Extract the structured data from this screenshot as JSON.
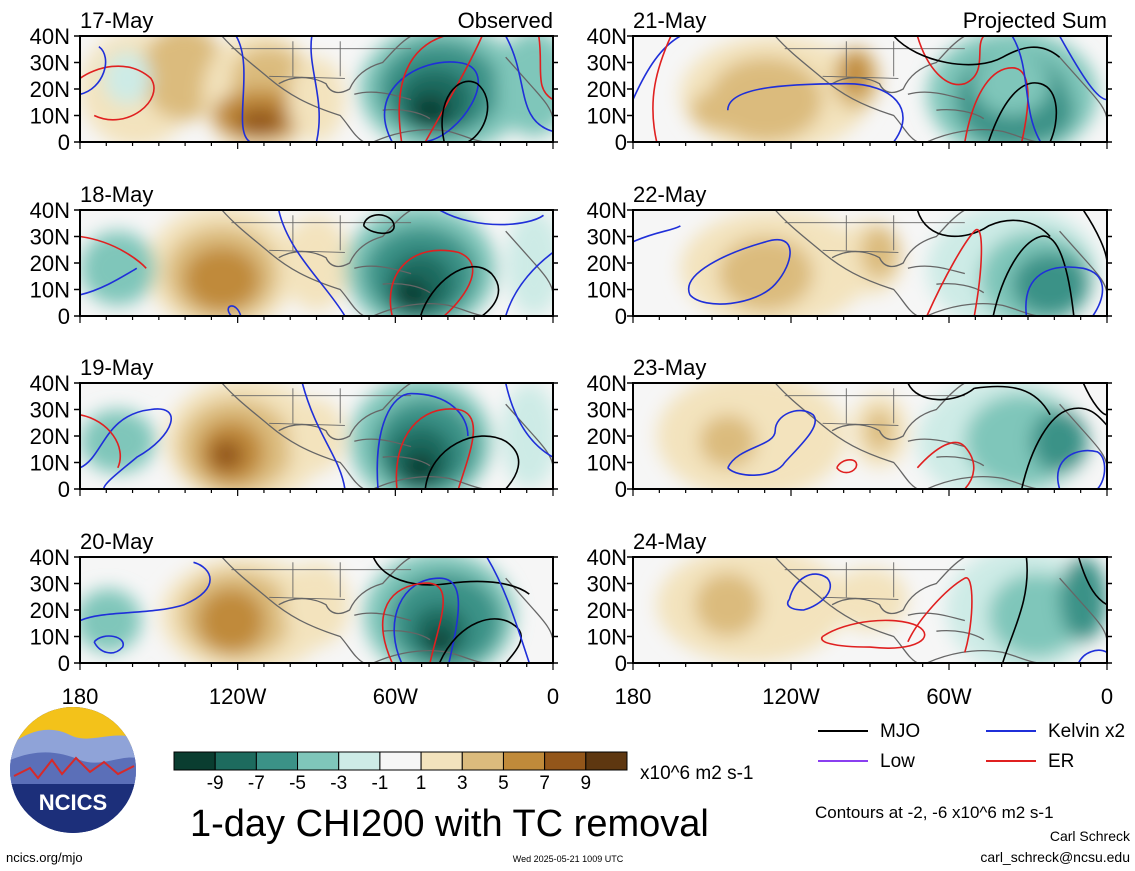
{
  "left_column": {
    "header": "Observed",
    "panels": [
      {
        "date": "17-May"
      },
      {
        "date": "18-May"
      },
      {
        "date": "19-May"
      },
      {
        "date": "20-May"
      }
    ]
  },
  "right_column": {
    "header": "Projected Sum",
    "panels": [
      {
        "date": "21-May"
      },
      {
        "date": "22-May"
      },
      {
        "date": "23-May"
      },
      {
        "date": "24-May"
      }
    ]
  },
  "axes": {
    "lat_labels": [
      "40N",
      "30N",
      "20N",
      "10N",
      "0"
    ],
    "lon_labels": [
      "180",
      "120W",
      "60W",
      "0"
    ]
  },
  "colorbar": {
    "tick_labels": [
      "-9",
      "-7",
      "-5",
      "-3",
      "-1",
      "1",
      "3",
      "5",
      "7",
      "9"
    ],
    "colors": [
      "#0a3d30",
      "#1d6b5e",
      "#3b9287",
      "#7fc6ba",
      "#cdebe6",
      "#f6f6f6",
      "#f3e3bd",
      "#dbbb7d",
      "#c08a3a",
      "#93561a",
      "#5e3710"
    ],
    "units": "x10^6 m2 s-1"
  },
  "title": "1-day CHI200 with TC removal",
  "legend": {
    "items": [
      {
        "label": "MJO",
        "color": "#000000"
      },
      {
        "label": "Kelvin x2",
        "color": "#1f2fd9"
      },
      {
        "label": "Low",
        "color": "#8a3ff0"
      },
      {
        "label": "ER",
        "color": "#e02020"
      }
    ],
    "contour_note": "Contours at -2, -6 x10^6 m2 s-1"
  },
  "credit": {
    "author": "Carl Schreck",
    "email": "carl_schreck@ncsu.edu"
  },
  "logo_text": "NCICS",
  "footer": {
    "url": "ncics.org/mjo",
    "timestamp": "Wed 2025-05-21 1009 UTC"
  }
}
